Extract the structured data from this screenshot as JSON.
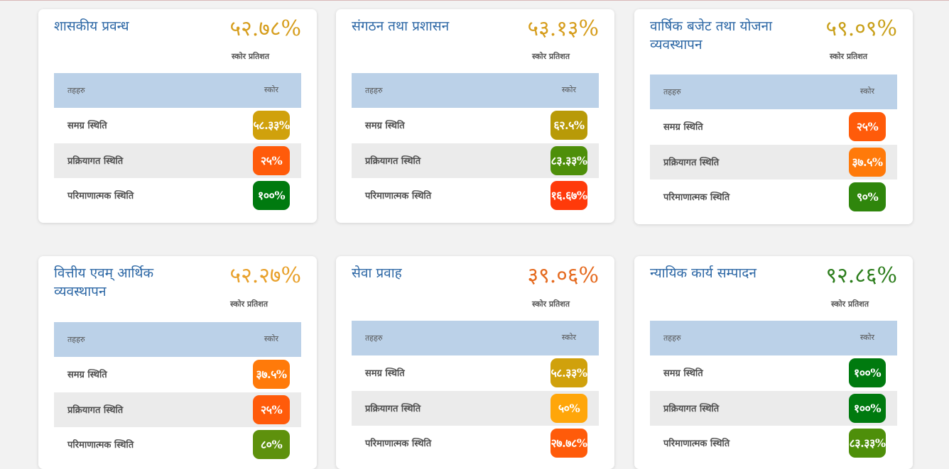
{
  "header_label": "तहहरु",
  "score_header_label": "स्कोर",
  "score_caption": "स्कोर प्रतिशत",
  "cards": [
    {
      "title": "शासकीय प्रवन्ध",
      "score": "५२.७८%",
      "score_color": "#d69d1c",
      "rows": [
        {
          "label": "समग्र स्थिति",
          "value": "५८.३३%",
          "color": "#d0a10c"
        },
        {
          "label": "प्रक्रियागत स्थिति",
          "value": "२५%",
          "color": "#ff5b0a"
        },
        {
          "label": "परिमाणात्मक स्थिति",
          "value": "१००%",
          "color": "#007a0f"
        }
      ]
    },
    {
      "title": "संगठन तथा प्रशासन",
      "score": "५३.१३%",
      "score_color": "#d69d1c",
      "rows": [
        {
          "label": "समग्र स्थिति",
          "value": "६२.५%",
          "color": "#b89a08"
        },
        {
          "label": "प्रक्रियागत स्थिति",
          "value": "८३.३३%",
          "color": "#4e8f0a"
        },
        {
          "label": "परिमाणात्मक स्थिति",
          "value": "१६.६७%",
          "color": "#ff3a0a"
        }
      ]
    },
    {
      "title": "वार्षिक बजेट तथा योजना व्यवस्थापन",
      "score": "५९.०९%",
      "score_color": "#c9a01a",
      "rows": [
        {
          "label": "समग्र स्थिति",
          "value": "२५%",
          "color": "#ff5b0a"
        },
        {
          "label": "प्रक्रियागत स्थिति",
          "value": "३७.५%",
          "color": "#ff7a0a"
        },
        {
          "label": "परिमाणात्मक स्थिति",
          "value": "९०%",
          "color": "#2f860c"
        }
      ]
    },
    {
      "title": "वित्तीय एवम् आर्थिक व्यवस्थापन",
      "score": "५२.२७%",
      "score_color": "#e8a02a",
      "rows": [
        {
          "label": "समग्र स्थिति",
          "value": "३७.५%",
          "color": "#ff7a0a"
        },
        {
          "label": "प्रक्रियागत स्थिति",
          "value": "२५%",
          "color": "#ff5b0a"
        },
        {
          "label": "परिमाणात्मक स्थिति",
          "value": "८०%",
          "color": "#5e910d"
        }
      ]
    },
    {
      "title": "सेवा प्रवाह",
      "score": "३९.०६%",
      "score_color": "#e56a1f",
      "rows": [
        {
          "label": "समग्र स्थिति",
          "value": "५८.३३%",
          "color": "#d0a10c"
        },
        {
          "label": "प्रक्रियागत स्थिति",
          "value": "५०%",
          "color": "#ffa60a"
        },
        {
          "label": "परिमाणात्मक स्थिति",
          "value": "२७.७८%",
          "color": "#ff5b0a"
        }
      ]
    },
    {
      "title": "न्यायिक कार्य सम्पादन",
      "score": "९२.८६%",
      "score_color": "#2c7d1c",
      "rows": [
        {
          "label": "समग्र स्थिति",
          "value": "१००%",
          "color": "#007a0f"
        },
        {
          "label": "प्रक्रियागत स्थिति",
          "value": "१००%",
          "color": "#007a0f"
        },
        {
          "label": "परिमाणात्मक स्थिति",
          "value": "८३.३३%",
          "color": "#4e8f0a"
        }
      ]
    }
  ]
}
